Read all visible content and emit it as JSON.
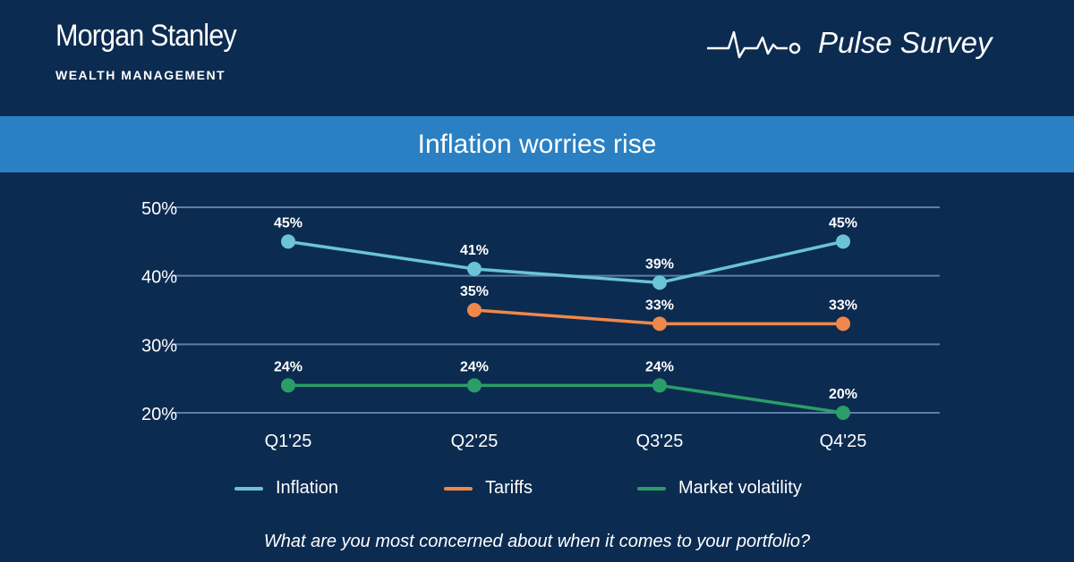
{
  "header": {
    "brand_name": "Morgan Stanley",
    "brand_sub": "WEALTH MANAGEMENT",
    "survey_name": "Pulse Survey",
    "survey_icon": "pulse-heartbeat-icon"
  },
  "colors": {
    "background": "#0c2b50",
    "title_band": "#2a80c2",
    "gridline": "#5d7ea6",
    "inflation": "#6ac3d6",
    "tariffs": "#f0874a",
    "market_volatility": "#2a9d68"
  },
  "chart_data": {
    "type": "line",
    "title": "Inflation worries rise",
    "categories": [
      "Q1'25",
      "Q2'25",
      "Q3'25",
      "Q4'25"
    ],
    "y_ticks": [
      "20%",
      "30%",
      "40%",
      "50%"
    ],
    "ylim": [
      20,
      50
    ],
    "grid": true,
    "legend_position": "bottom",
    "series": [
      {
        "name": "Inflation",
        "values": [
          45,
          41,
          39,
          45
        ],
        "labels": [
          "45%",
          "41%",
          "39%",
          "45%"
        ]
      },
      {
        "name": "Tariffs",
        "values": [
          null,
          35,
          33,
          33
        ],
        "labels": [
          null,
          "35%",
          "33%",
          "33%"
        ]
      },
      {
        "name": "Market volatility",
        "values": [
          24,
          24,
          24,
          20
        ],
        "labels": [
          "24%",
          "24%",
          "24%",
          "20%"
        ]
      }
    ]
  },
  "footer": {
    "question": "What are you most concerned about when it comes to your portfolio?"
  }
}
